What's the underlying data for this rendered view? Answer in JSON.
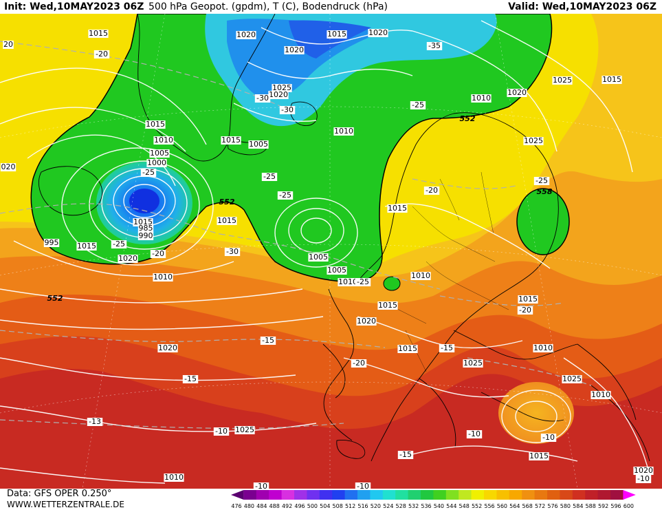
{
  "header": {
    "init": "Init: Wed,10MAY2023 06Z",
    "title": "500 hPa Geopot. (gpdm), T (C), Bodendruck (hPa)",
    "valid": "Valid: Wed,10MAY2023 06Z"
  },
  "footer": {
    "data_source": "Data: GFS OPER 0.250°",
    "website": "WWW.WETTERZENTRALE.DE"
  },
  "colors": {
    "deep_red": "#b8202a",
    "red": "#d83a1e",
    "orange_red": "#e85c14",
    "orange": "#f08a1a",
    "light_orange": "#f5b420",
    "yellow": "#f5e000",
    "green": "#20c020",
    "cyan": "#18b4e6",
    "blue": "#2050e8",
    "isobar": "#ffffff",
    "coast": "#000000",
    "geopot_552": "#000000"
  },
  "legend": {
    "values": [
      "476",
      "480",
      "484",
      "488",
      "492",
      "496",
      "500",
      "504",
      "508",
      "512",
      "516",
      "520",
      "524",
      "528",
      "532",
      "536",
      "540",
      "544",
      "548",
      "552",
      "556",
      "560",
      "564",
      "568",
      "572",
      "576",
      "580",
      "584",
      "588",
      "592",
      "596",
      "600"
    ],
    "colors": [
      "#5a0070",
      "#7a0090",
      "#a000b0",
      "#c000d0",
      "#d830e0",
      "#a030e8",
      "#7030f0",
      "#4030f0",
      "#2040f0",
      "#2070f0",
      "#20a0f0",
      "#20c8f0",
      "#20e0d0",
      "#20e0a0",
      "#20d070",
      "#20c840",
      "#40d020",
      "#80e020",
      "#c0e820",
      "#f0f000",
      "#f8d800",
      "#f8c000",
      "#f8a800",
      "#f09010",
      "#e87810",
      "#e06010",
      "#d84818",
      "#d03020",
      "#c02028",
      "#b01830",
      "#a01040",
      "#ff00ff"
    ]
  },
  "map_labels": [
    {
      "text": "1015"
    },
    {
      "text": "1020"
    },
    {
      "text": "1015"
    },
    {
      "text": "1020"
    },
    {
      "text": "20"
    },
    {
      "text": "-20"
    },
    {
      "text": "1020"
    },
    {
      "text": "-35"
    },
    {
      "text": "1025"
    },
    {
      "text": "1020"
    },
    {
      "text": "-30"
    },
    {
      "text": "-30"
    },
    {
      "text": "1020"
    },
    {
      "text": "1025"
    },
    {
      "text": "1015"
    },
    {
      "text": "-25"
    },
    {
      "text": "552"
    },
    {
      "text": "1015"
    },
    {
      "text": "1010"
    },
    {
      "text": "1010"
    },
    {
      "text": "1015"
    },
    {
      "text": "1005"
    },
    {
      "text": "1010"
    },
    {
      "text": "1025"
    },
    {
      "text": "1015"
    },
    {
      "text": "1005"
    },
    {
      "text": "1000"
    },
    {
      "text": "020"
    },
    {
      "text": "-25"
    },
    {
      "text": "-25"
    },
    {
      "text": "-25"
    },
    {
      "text": "-25"
    },
    {
      "text": "-20"
    },
    {
      "text": "558"
    },
    {
      "text": "552"
    },
    {
      "text": "1015"
    },
    {
      "text": "1015"
    },
    {
      "text": "985"
    },
    {
      "text": "990"
    },
    {
      "text": "995"
    },
    {
      "text": "1015"
    },
    {
      "text": "-25"
    },
    {
      "text": "-30"
    },
    {
      "text": "1020"
    },
    {
      "text": "-20"
    },
    {
      "text": "1005"
    },
    {
      "text": "1005"
    },
    {
      "text": "1010"
    },
    {
      "text": "1010"
    },
    {
      "text": "1010"
    },
    {
      "text": "-25"
    },
    {
      "text": "552"
    },
    {
      "text": "1015"
    },
    {
      "text": "1015"
    },
    {
      "text": "-20"
    },
    {
      "text": "1020"
    },
    {
      "text": "1020"
    },
    {
      "text": "-15"
    },
    {
      "text": "-15"
    },
    {
      "text": "1010"
    },
    {
      "text": "1015"
    },
    {
      "text": "-20"
    },
    {
      "text": "1025"
    },
    {
      "text": "-15"
    },
    {
      "text": "1025"
    },
    {
      "text": "1010"
    },
    {
      "text": "-13"
    },
    {
      "text": "-10"
    },
    {
      "text": "1025"
    },
    {
      "text": "-10"
    },
    {
      "text": "-10"
    },
    {
      "text": "-15"
    },
    {
      "text": "1015"
    },
    {
      "text": "1010"
    },
    {
      "text": "1020"
    },
    {
      "text": "-10"
    },
    {
      "text": "-10"
    },
    {
      "text": "-10"
    }
  ]
}
